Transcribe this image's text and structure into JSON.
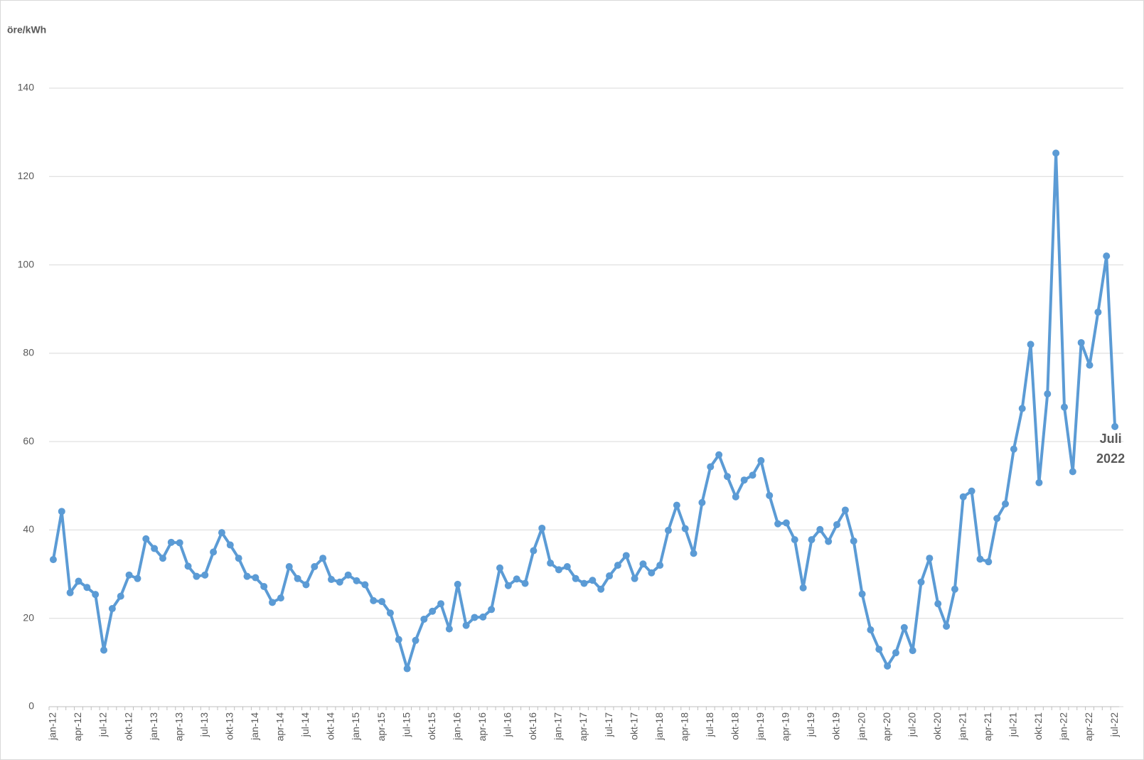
{
  "chart_data": {
    "type": "line",
    "y_label": "öre/kWh",
    "annotation": [
      "Juli",
      "2022"
    ],
    "categories": [
      "jan-12",
      null,
      null,
      "apr-12",
      null,
      null,
      "jul-12",
      null,
      null,
      "okt-12",
      null,
      null,
      "jan-13",
      null,
      null,
      "apr-13",
      null,
      null,
      "jul-13",
      null,
      null,
      "okt-13",
      null,
      null,
      "jan-14",
      null,
      null,
      "apr-14",
      null,
      null,
      "jul-14",
      null,
      null,
      "okt-14",
      null,
      null,
      "jan-15",
      null,
      null,
      "apr-15",
      null,
      null,
      "jul-15",
      null,
      null,
      "okt-15",
      null,
      null,
      "jan-16",
      null,
      null,
      "apr-16",
      null,
      null,
      "jul-16",
      null,
      null,
      "okt-16",
      null,
      null,
      "jan-17",
      null,
      null,
      "apr-17",
      null,
      null,
      "jul-17",
      null,
      null,
      "okt-17",
      null,
      null,
      "jan-18",
      null,
      null,
      "apr-18",
      null,
      null,
      "jul-18",
      null,
      null,
      "okt-18",
      null,
      null,
      "jan-19",
      null,
      null,
      "apr-19",
      null,
      null,
      "jul-19",
      null,
      null,
      "okt-19",
      null,
      null,
      "jan-20",
      null,
      null,
      "apr-20",
      null,
      null,
      "jul-20",
      null,
      null,
      "okt-20",
      null,
      null,
      "jan-21",
      null,
      null,
      "apr-21",
      null,
      null,
      "jul-21",
      null,
      null,
      "okt-21",
      null,
      null,
      "jan-22",
      null,
      null,
      "apr-22",
      null,
      null,
      "jul-22"
    ],
    "series": [
      {
        "color": "#5b9bd5",
        "values": [
          33.3,
          44.2,
          25.8,
          28.4,
          27,
          25.4,
          12.8,
          22.2,
          25,
          29.8,
          29,
          38,
          35.8,
          33.6,
          37.2,
          37.1,
          31.8,
          29.5,
          29.8,
          35,
          39.4,
          36.6,
          33.6,
          29.5,
          29.2,
          27.2,
          23.6,
          24.6,
          31.7,
          29,
          27.6,
          31.7,
          33.6,
          28.8,
          28.2,
          29.8,
          28.5,
          27.6,
          24,
          23.8,
          21.2,
          15.2,
          8.6,
          15,
          19.8,
          21.6,
          23.3,
          17.6,
          27.7,
          18.4,
          20.2,
          20.3,
          22,
          31.4,
          27.4,
          28.9,
          27.9,
          35.3,
          40.4,
          32.5,
          31,
          31.7,
          29,
          27.9,
          28.6,
          26.6,
          29.6,
          32,
          34.2,
          29,
          32.3,
          30.3,
          32,
          39.9,
          45.6,
          40.3,
          34.7,
          46.2,
          54.3,
          57,
          52.1,
          47.5,
          51.3,
          52.4,
          55.7,
          47.8,
          41.4,
          41.6,
          37.8,
          26.9,
          37.8,
          40.1,
          37.4,
          41.2,
          44.5,
          37.5,
          25.5,
          17.4,
          13,
          9.2,
          12.2,
          17.9,
          12.7,
          28.2,
          33.6,
          23.3,
          18.2,
          26.6,
          47.5,
          48.8,
          33.4,
          32.8,
          42.6,
          45.9,
          58.3,
          67.5,
          82,
          50.7,
          70.8,
          125.3,
          67.8,
          53.2,
          82.4,
          77.3,
          89.3,
          102,
          63.4
        ]
      }
    ],
    "ylim": [
      0,
      140
    ],
    "yticks": [
      0,
      20,
      40,
      60,
      80,
      100,
      120,
      140
    ],
    "grid": true
  }
}
